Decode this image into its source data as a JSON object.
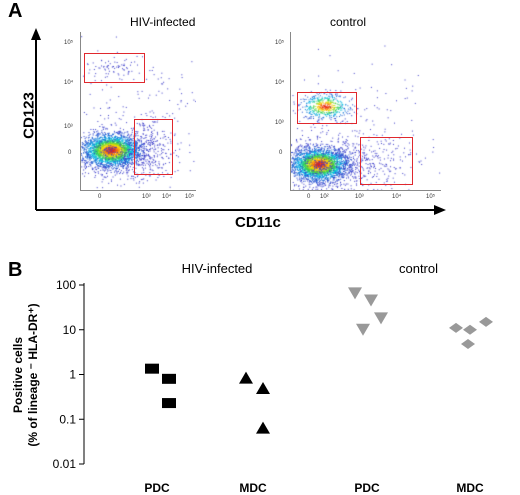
{
  "panel_a": {
    "letter": "A",
    "y_axis_label": "CD123",
    "x_axis_label": "CD11c",
    "plots": [
      {
        "title": "HIV-infected",
        "y_ticks": [
          "10⁵",
          "10⁴",
          "10³",
          "0"
        ],
        "x_ticks": [
          "0",
          "10³",
          "10⁴",
          "10⁵"
        ],
        "gate_color": "#e0282e"
      },
      {
        "title": "control",
        "y_ticks": [
          "10⁵",
          "10⁴",
          "10³",
          "0"
        ],
        "x_ticks": [
          "0",
          "10²",
          "10³",
          "10⁴",
          "10⁵"
        ],
        "gate_color": "#e0282e"
      }
    ]
  },
  "chart_data": {
    "type": "scatter",
    "panel_letter": "B",
    "ylabel_line1": "Positive cells",
    "ylabel_line2": "(% of lineage ⁻ HLA-DR⁺)",
    "y_scale": "log",
    "ylim": [
      0.01,
      100
    ],
    "y_ticks": [
      {
        "value": 100,
        "label": "100"
      },
      {
        "value": 10,
        "label": "10"
      },
      {
        "value": 1,
        "label": "1"
      },
      {
        "value": 0.1,
        "label": "0.1"
      },
      {
        "value": 0.01,
        "label": "0.01"
      }
    ],
    "categories": [
      "PDC",
      "MDC",
      "PDC",
      "MDC"
    ],
    "groups": [
      {
        "label": "HIV-infected",
        "categories": [
          0,
          1
        ],
        "color": "#000000"
      },
      {
        "label": "control",
        "categories": [
          2,
          3
        ],
        "color": "#999999"
      }
    ],
    "series": [
      {
        "category": 0,
        "marker": "square",
        "color": "#000000",
        "values": [
          1.35,
          0.8,
          0.23
        ]
      },
      {
        "category": 1,
        "marker": "triangle-up",
        "color": "#000000",
        "values": [
          0.85,
          0.5,
          0.065
        ]
      },
      {
        "category": 2,
        "marker": "triangle-down",
        "color": "#999999",
        "values": [
          65,
          45,
          18,
          10
        ]
      },
      {
        "category": 3,
        "marker": "diamond",
        "color": "#999999",
        "values": [
          11,
          10,
          15,
          4.8
        ]
      }
    ]
  }
}
